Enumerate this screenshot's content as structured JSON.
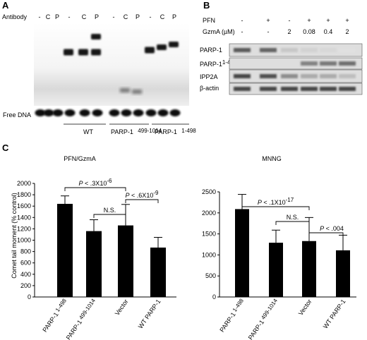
{
  "panelA": {
    "label": "A",
    "antibody_label": "Antibody",
    "lanes": [
      "-",
      "C",
      "P",
      "-",
      "C",
      "P",
      "-",
      "C",
      "P",
      "-",
      "C",
      "P"
    ],
    "free_dna_label": "Free DNA",
    "groups": [
      "WT",
      "PARP-1",
      "499-1014",
      "PARP-1",
      "1-498"
    ]
  },
  "panelB": {
    "label": "B",
    "row1_label": "PFN",
    "row1_values": [
      "-",
      "+",
      "-",
      "+",
      "+",
      "+"
    ],
    "row2_label": "GzmA (µM)",
    "row2_values": [
      "-",
      "-",
      "2",
      "0.08",
      "0.4",
      "2"
    ],
    "blots": [
      "PARP-1",
      "PARP-1",
      "1-498",
      "IPP2A",
      "β-actin"
    ]
  },
  "panelC": {
    "label": "C",
    "ylabel": "Comet tail moment (% control)"
  },
  "chart_data": [
    {
      "type": "bar",
      "title": "PFN/GzmA",
      "categories": [
        "PARP-1 1-498",
        "PARP-1 499-1014",
        "Vector",
        "WT PARP-1"
      ],
      "category_parts": [
        [
          "PARP-1",
          "1-498"
        ],
        [
          "PARP-1",
          "499-1014"
        ],
        [
          "Vector",
          ""
        ],
        [
          "WT PARP-1",
          ""
        ]
      ],
      "values": [
        1640,
        1160,
        1260,
        870
      ],
      "errors": [
        140,
        200,
        370,
        180
      ],
      "ylabel": "Comet tail moment (% control)",
      "ylim": [
        0,
        2000
      ],
      "yticks": [
        "0",
        "200",
        "400",
        "600",
        "800",
        "1000",
        "1200",
        "1400",
        "1600",
        "1800",
        "2000"
      ],
      "annotations": [
        {
          "p": "P",
          "text": " < .3X10",
          "exp": "-6"
        },
        {
          "p": "",
          "text": "N.S.",
          "exp": ""
        },
        {
          "p": "P",
          "text": " < .6X10",
          "exp": "-9"
        }
      ]
    },
    {
      "type": "bar",
      "title": "MNNG",
      "categories": [
        "PARP-1 1-498",
        "PARP-1 499-1014",
        "Vector",
        "WT PARP-1"
      ],
      "category_parts": [
        [
          "PARP-1",
          "1-498"
        ],
        [
          "PARP-1",
          "499-1014"
        ],
        [
          "Vector",
          ""
        ],
        [
          "WT PARP-1",
          ""
        ]
      ],
      "values": [
        2090,
        1290,
        1330,
        1110
      ],
      "errors": [
        350,
        300,
        560,
        360
      ],
      "ylim": [
        0,
        2500
      ],
      "yticks": [
        "0",
        "500",
        "1000",
        "1500",
        "2000",
        "2500"
      ],
      "annotations": [
        {
          "p": "P",
          "text": " < .1X10",
          "exp": "-17"
        },
        {
          "p": "",
          "text": "N.S.",
          "exp": ""
        },
        {
          "p": "P",
          "text": " < .004",
          "exp": ""
        }
      ]
    }
  ]
}
